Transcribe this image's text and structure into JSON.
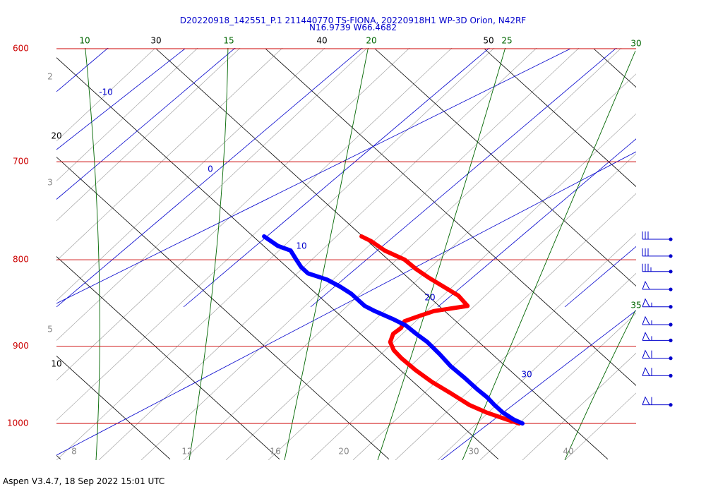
{
  "chart_data": {
    "type": "line",
    "title": "D20220918_142551_P.1 211440770 TS-FIONA, 20220918H1 WP-3D Orion, N42RF",
    "subtitle": "N16.9739 W66.4682",
    "footer": "Aspen V3.4.7, 18 Sep 2022  15:01 UTC",
    "pressure_range": [
      600,
      1050
    ],
    "temperature_axis_range": [
      -5,
      45
    ],
    "pressure_labels": [
      "600",
      "700",
      "800",
      "900",
      "1000"
    ],
    "pressure_values": [
      600,
      700,
      800,
      900,
      1000
    ],
    "bottom_axis_labels": [
      "8",
      "12",
      "16",
      "20",
      "30",
      "40"
    ],
    "isotherm_labels": [
      {
        "text": "30",
        "value": 30
      },
      {
        "text": "40",
        "value": 40
      },
      {
        "text": "50",
        "value": 50
      },
      {
        "text": "20",
        "value": 20
      },
      {
        "text": "10",
        "value": 10
      }
    ],
    "moist_adiabat_labels": [
      "10",
      "15",
      "20",
      "25",
      "30",
      "35"
    ],
    "mixing_ratio_labels": [
      "-10",
      "0",
      "10",
      "20",
      "30"
    ],
    "left_gray_labels": [
      "2",
      "3",
      "5"
    ],
    "series": [
      {
        "name": "",
        "color": "#ff0000",
        "points": [
          [
            775,
            29.9
          ],
          [
            780,
            30.3
          ],
          [
            790,
            30.6
          ],
          [
            800,
            31.5
          ],
          [
            810,
            31.6
          ],
          [
            820,
            31.9
          ],
          [
            840,
            32.8
          ],
          [
            852,
            32.6
          ],
          [
            858,
            29.0
          ],
          [
            865,
            26.8
          ],
          [
            870,
            25.3
          ],
          [
            878,
            24.3
          ],
          [
            885,
            23.0
          ],
          [
            895,
            21.9
          ],
          [
            905,
            21.4
          ],
          [
            915,
            21.3
          ],
          [
            930,
            21.4
          ],
          [
            945,
            21.7
          ],
          [
            960,
            22.3
          ],
          [
            975,
            22.8
          ],
          [
            985,
            23.6
          ],
          [
            995,
            24.8
          ],
          [
            1000,
            25.5
          ]
        ]
      },
      {
        "name": "",
        "color": "#0000ff",
        "points": [
          [
            775,
            21.0
          ],
          [
            785,
            21.3
          ],
          [
            790,
            22.0
          ],
          [
            800,
            21.6
          ],
          [
            808,
            21.3
          ],
          [
            815,
            21.3
          ],
          [
            822,
            22.4
          ],
          [
            830,
            22.9
          ],
          [
            838,
            23.2
          ],
          [
            846,
            23.2
          ],
          [
            852,
            23.2
          ],
          [
            858,
            23.6
          ],
          [
            868,
            24.5
          ],
          [
            875,
            25.0
          ],
          [
            885,
            25.1
          ],
          [
            895,
            25.3
          ],
          [
            910,
            25.2
          ],
          [
            925,
            25.0
          ],
          [
            940,
            25.1
          ],
          [
            955,
            25.1
          ],
          [
            965,
            25.2
          ],
          [
            975,
            25.1
          ],
          [
            985,
            25.1
          ],
          [
            995,
            25.4
          ],
          [
            1000,
            25.8
          ]
        ]
      }
    ],
    "wind_barbs": [
      {
        "pressure": 778,
        "speed_kt": 30
      },
      {
        "pressure": 796,
        "speed_kt": 30
      },
      {
        "pressure": 813,
        "speed_kt": 35
      },
      {
        "pressure": 833,
        "speed_kt": 50
      },
      {
        "pressure": 853,
        "speed_kt": 55
      },
      {
        "pressure": 874,
        "speed_kt": 55
      },
      {
        "pressure": 893,
        "speed_kt": 55
      },
      {
        "pressure": 915,
        "speed_kt": 60
      },
      {
        "pressure": 937,
        "speed_kt": 60
      },
      {
        "pressure": 975,
        "speed_kt": 60
      }
    ],
    "colors": {
      "isobar": "#cc0000",
      "isotherm": "#000000",
      "mixing_ratio": "#0000cc",
      "moist_adiabat": "#006600",
      "dry_adiabat": "#999999"
    }
  }
}
